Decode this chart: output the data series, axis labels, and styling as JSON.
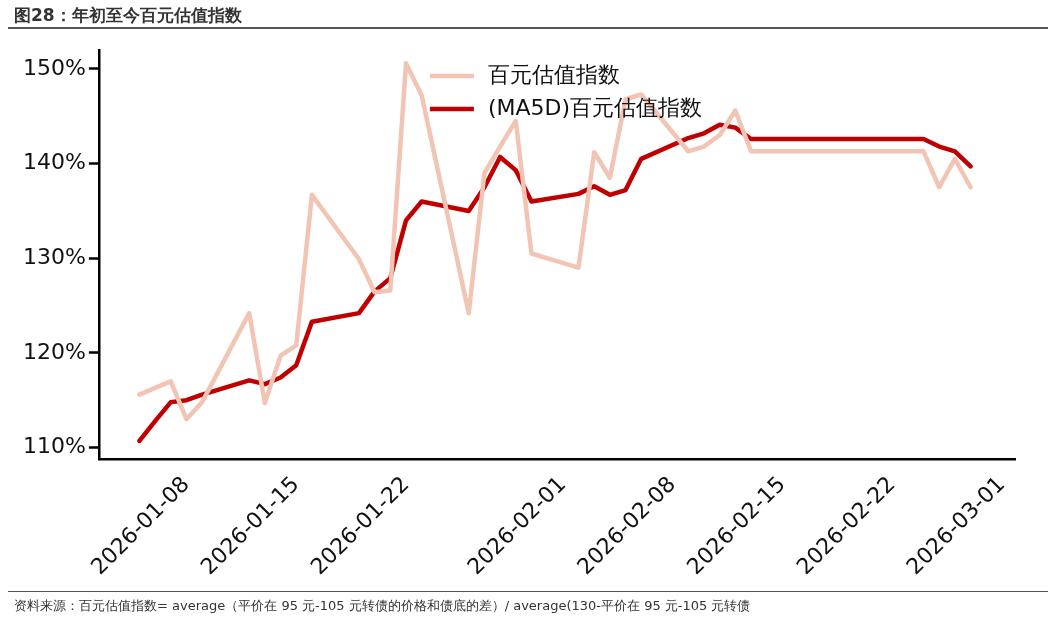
{
  "chart_data": {
    "type": "line",
    "title": "图28：年初至今百元估值指数",
    "annotations": [
      "资料来源：百元估值指数= average（平价在 95 元-105 元转债的价格和债底的差）/ average(130-平价在 95 元-105 元转债"
    ],
    "x": [
      "2026-01-05",
      "2026-01-06",
      "2026-01-07",
      "2026-01-08",
      "2026-01-09",
      "2026-01-12",
      "2026-01-13",
      "2026-01-14",
      "2026-01-15",
      "2026-01-16",
      "2026-01-19",
      "2026-01-20",
      "2026-01-21",
      "2026-01-22",
      "2026-01-23",
      "2026-01-26",
      "2026-01-27",
      "2026-01-28",
      "2026-01-29",
      "2026-01-30",
      "2026-02-02",
      "2026-02-03",
      "2026-02-04",
      "2026-02-05",
      "2026-02-06",
      "2026-02-09",
      "2026-02-10",
      "2026-02-11",
      "2026-02-12",
      "2026-02-13",
      "2026-02-24",
      "2026-02-25",
      "2026-02-26",
      "2026-02-27"
    ],
    "series": [
      {
        "name": "百元估值指数",
        "color": "#f2c4b4",
        "values": [
          115.6,
          116.3,
          117.0,
          113.0,
          114.8,
          124.2,
          114.7,
          119.7,
          120.8,
          136.7,
          129.9,
          126.4,
          126.6,
          150.6,
          147.2,
          124.2,
          139.0,
          141.8,
          144.5,
          130.5,
          129.0,
          141.2,
          138.5,
          146.8,
          147.3,
          141.3,
          141.8,
          143.0,
          145.6,
          141.3,
          141.3,
          137.5,
          140.5,
          137.5
        ]
      },
      {
        "name": "(MA5D)百元估值指数",
        "color": "#c00000",
        "values": [
          110.7,
          112.8,
          114.8,
          115.0,
          115.6,
          117.1,
          116.7,
          117.4,
          118.7,
          123.3,
          124.2,
          126.5,
          127.9,
          134.0,
          136.0,
          135.0,
          137.5,
          140.7,
          139.3,
          136.0,
          136.8,
          137.6,
          136.7,
          137.2,
          140.5,
          142.7,
          143.2,
          144.1,
          143.8,
          142.6,
          142.6,
          141.8,
          141.3,
          139.7
        ]
      }
    ],
    "xlim": [
      "2026-01-02T10:00",
      "2026-03-01T20:00"
    ],
    "xticks": [
      "2026-01-08",
      "2026-01-15",
      "2026-01-22",
      "2026-02-01",
      "2026-02-08",
      "2026-02-15",
      "2026-02-22",
      "2026-03-01"
    ],
    "ylim": [
      108.8,
      152
    ],
    "yticks": [
      {
        "value": 110,
        "label": "110%"
      },
      {
        "value": 120,
        "label": "120%"
      },
      {
        "value": 130,
        "label": "130%"
      },
      {
        "value": 140,
        "label": "140%"
      },
      {
        "value": 150,
        "label": "150%"
      }
    ],
    "grid": false,
    "legend": "top",
    "marker": "none",
    "line_style": "solid"
  }
}
